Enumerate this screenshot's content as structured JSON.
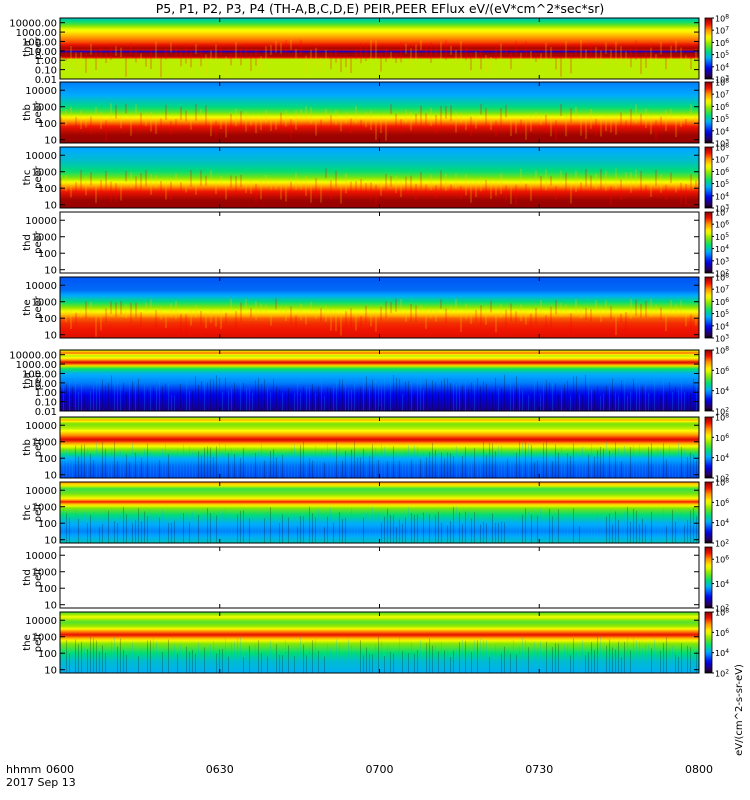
{
  "title": "P5, P1, P2, P3, P4 (TH-A,B,C,D,E) PEIR,PEER EFlux eV/(eV*cm^2*sec*sr)",
  "chart_data": {
    "type": "heatmap",
    "x_axis": {
      "ticks": [
        "0600",
        "0630",
        "0700",
        "0730",
        "0800"
      ],
      "range_minutes": [
        0,
        120
      ],
      "corner_label": "hhmm",
      "date": "2017 Sep 13"
    },
    "colorbar_label": "eV/(cm^2-s-sr-eV)",
    "panels": [
      {
        "id": "tha-peer",
        "probe": "tha",
        "instrument": "peer",
        "yticks": [
          "10000.00",
          "1000.00",
          "100.00",
          "10.00",
          "1.00",
          "0.10",
          "0.01"
        ],
        "yrange_log10": [
          -2,
          4.5
        ],
        "cbar_exp": [
          3,
          8
        ],
        "cbar_ticks": [
          3,
          4,
          5,
          6,
          7,
          8
        ],
        "has_data": true,
        "profile": [
          [
            -2,
            0.62
          ],
          [
            0.2,
            0.62
          ],
          [
            0.3,
            0.99
          ],
          [
            0.6,
            0.97
          ],
          [
            0.8,
            0.99
          ],
          [
            0.9,
            0.06
          ],
          [
            1.1,
            0.99
          ],
          [
            1.3,
            0.97
          ],
          [
            1.9,
            0.86
          ],
          [
            2.4,
            0.8
          ],
          [
            2.9,
            0.72
          ],
          [
            3.4,
            0.64
          ],
          [
            3.9,
            0.5
          ],
          [
            4.5,
            0.38
          ]
        ]
      },
      {
        "id": "thb-peer",
        "probe": "thb",
        "instrument": "peer",
        "yticks": [
          "10000",
          "1000",
          "100",
          "10"
        ],
        "yrange_log10": [
          0.8,
          4.5
        ],
        "cbar_exp": [
          3,
          8
        ],
        "cbar_ticks": [
          3,
          4,
          5,
          6,
          7,
          8
        ],
        "has_data": true,
        "profile": [
          [
            0.8,
            0.99
          ],
          [
            1.3,
            0.98
          ],
          [
            1.8,
            0.9
          ],
          [
            2.1,
            0.8
          ],
          [
            2.4,
            0.66
          ],
          [
            2.7,
            0.52
          ],
          [
            3.0,
            0.44
          ],
          [
            3.3,
            0.4
          ],
          [
            3.7,
            0.34
          ],
          [
            4.5,
            0.3
          ]
        ]
      },
      {
        "id": "thc-peer",
        "probe": "thc",
        "instrument": "peer",
        "yticks": [
          "10000",
          "1000",
          "100",
          "10"
        ],
        "yrange_log10": [
          0.8,
          4.5
        ],
        "cbar_exp": [
          3,
          8
        ],
        "cbar_ticks": [
          3,
          4,
          5,
          6,
          7,
          8
        ],
        "has_data": true,
        "profile": [
          [
            0.8,
            0.99
          ],
          [
            1.3,
            0.98
          ],
          [
            1.8,
            0.9
          ],
          [
            2.1,
            0.8
          ],
          [
            2.4,
            0.66
          ],
          [
            2.7,
            0.54
          ],
          [
            3.0,
            0.46
          ],
          [
            3.3,
            0.42
          ],
          [
            3.7,
            0.38
          ],
          [
            4.5,
            0.33
          ]
        ]
      },
      {
        "id": "thd-peer",
        "probe": "thd",
        "instrument": "peer",
        "yticks": [
          "10000",
          "1000",
          "100",
          "10"
        ],
        "yrange_log10": [
          0.8,
          4.5
        ],
        "cbar_exp": [
          2,
          7
        ],
        "cbar_ticks": [
          2,
          3,
          4,
          5,
          6,
          7
        ],
        "has_data": false,
        "profile": []
      },
      {
        "id": "the-peer",
        "probe": "the",
        "instrument": "peer",
        "yticks": [
          "10000",
          "1000",
          "100",
          "10"
        ],
        "yrange_log10": [
          0.8,
          4.5
        ],
        "cbar_exp": [
          3,
          8
        ],
        "cbar_ticks": [
          3,
          4,
          5,
          6,
          7,
          8
        ],
        "has_data": true,
        "profile": [
          [
            0.8,
            0.92
          ],
          [
            1.3,
            0.9
          ],
          [
            1.7,
            0.88
          ],
          [
            2.0,
            0.84
          ],
          [
            2.3,
            0.72
          ],
          [
            2.6,
            0.6
          ],
          [
            2.9,
            0.48
          ],
          [
            3.3,
            0.36
          ],
          [
            3.7,
            0.28
          ],
          [
            4.5,
            0.26
          ]
        ]
      },
      {
        "id": "tha-peir",
        "probe": "tha",
        "instrument": "peir",
        "yticks": [
          "10000.00",
          "1000.00",
          "100.00",
          "10.00",
          "1.00",
          "0.10",
          "0.01"
        ],
        "yrange_log10": [
          -2,
          4.5
        ],
        "cbar_exp": [
          2,
          8
        ],
        "cbar_ticks": [
          2,
          4,
          6,
          8
        ],
        "has_data": true,
        "profile": [
          [
            -2,
            0.1
          ],
          [
            0,
            0.2
          ],
          [
            1,
            0.3
          ],
          [
            2,
            0.35
          ],
          [
            2.6,
            0.5
          ],
          [
            3.0,
            0.85
          ],
          [
            3.2,
            0.93
          ],
          [
            3.5,
            0.75
          ],
          [
            3.9,
            0.6
          ],
          [
            4.2,
            0.85
          ],
          [
            4.5,
            0.6
          ]
        ]
      },
      {
        "id": "thb-peir",
        "probe": "thb",
        "instrument": "peir",
        "yticks": [
          "10000",
          "1000",
          "100",
          "10"
        ],
        "yrange_log10": [
          0.8,
          4.5
        ],
        "cbar_exp": [
          2,
          8
        ],
        "cbar_ticks": [
          2,
          4,
          6,
          8
        ],
        "has_data": true,
        "profile": [
          [
            0.8,
            0.25
          ],
          [
            1.5,
            0.28
          ],
          [
            2.0,
            0.35
          ],
          [
            2.5,
            0.55
          ],
          [
            2.9,
            0.78
          ],
          [
            3.1,
            0.94
          ],
          [
            3.4,
            0.8
          ],
          [
            3.8,
            0.62
          ],
          [
            4.1,
            0.55
          ],
          [
            4.3,
            0.78
          ],
          [
            4.5,
            0.5
          ]
        ]
      },
      {
        "id": "thc-peir",
        "probe": "thc",
        "instrument": "peir",
        "yticks": [
          "10000",
          "1000",
          "100",
          "10"
        ],
        "yrange_log10": [
          0.8,
          4.5
        ],
        "cbar_exp": [
          2,
          8
        ],
        "cbar_ticks": [
          2,
          4,
          6,
          8
        ],
        "has_data": true,
        "profile": [
          [
            0.8,
            0.4
          ],
          [
            1.5,
            0.3
          ],
          [
            2.0,
            0.35
          ],
          [
            2.5,
            0.45
          ],
          [
            2.9,
            0.56
          ],
          [
            3.1,
            0.7
          ],
          [
            3.3,
            0.9
          ],
          [
            3.5,
            0.68
          ],
          [
            3.8,
            0.55
          ],
          [
            4.1,
            0.5
          ],
          [
            4.3,
            0.7
          ],
          [
            4.5,
            0.8
          ]
        ]
      },
      {
        "id": "thd-peir",
        "probe": "thd",
        "instrument": "peir",
        "yticks": [
          "10000",
          "1000",
          "100",
          "10"
        ],
        "yrange_log10": [
          0.8,
          4.5
        ],
        "cbar_exp": [
          2,
          7
        ],
        "cbar_ticks": [
          2,
          4,
          6
        ],
        "has_data": false,
        "profile": []
      },
      {
        "id": "the-peir",
        "probe": "the",
        "instrument": "peir",
        "yticks": [
          "10000",
          "1000",
          "100",
          "10"
        ],
        "yrange_log10": [
          0.8,
          4.5
        ],
        "cbar_exp": [
          2,
          8
        ],
        "cbar_ticks": [
          2,
          4,
          6,
          8
        ],
        "has_data": true,
        "profile": [
          [
            0.8,
            0.35
          ],
          [
            1.5,
            0.38
          ],
          [
            2.0,
            0.45
          ],
          [
            2.6,
            0.58
          ],
          [
            2.9,
            0.76
          ],
          [
            3.1,
            0.92
          ],
          [
            3.3,
            0.82
          ],
          [
            3.6,
            0.6
          ],
          [
            3.9,
            0.52
          ],
          [
            4.2,
            0.68
          ],
          [
            4.5,
            0.5
          ]
        ]
      }
    ]
  }
}
